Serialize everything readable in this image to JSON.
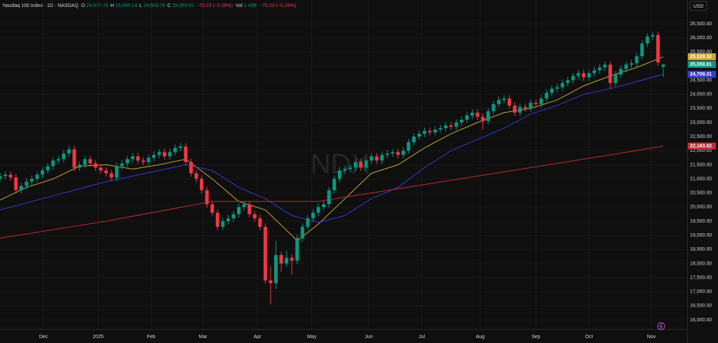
{
  "chart_data": {
    "type": "candlestick",
    "header": {
      "symbol": "Nasdaq 100 Index · 1D · NASDAQ",
      "fields": [
        {
          "key": "O",
          "value": "24,977.73"
        },
        {
          "key": "H",
          "value": "25,065.14"
        },
        {
          "key": "L",
          "value": "24,603.78"
        },
        {
          "key": "C",
          "value": "25,059.81"
        }
      ],
      "change": "−70.23 (−0.28%)",
      "vol_key": "Vol",
      "vol": "1.45B",
      "vol_change": "−70.23 (−0.28%)"
    },
    "currency": "USD",
    "watermark": "NDX",
    "up_color": "#089981",
    "down_color": "#f23645",
    "grid": true,
    "xlim": [
      0,
      259
    ],
    "ylim": [
      15677,
      27344
    ],
    "xticks": [
      {
        "value": 16.4,
        "label": "Dec"
      },
      {
        "value": 37,
        "label": "2025"
      },
      {
        "value": 57,
        "label": "Feb"
      },
      {
        "value": 76.5,
        "label": "Mar"
      },
      {
        "value": 97,
        "label": "Apr"
      },
      {
        "value": 117.5,
        "label": "May"
      },
      {
        "value": 139,
        "label": "Jun"
      },
      {
        "value": 159,
        "label": "Jul"
      },
      {
        "value": 181,
        "label": "Aug"
      },
      {
        "value": 202,
        "label": "Sep"
      },
      {
        "value": 222,
        "label": "Oct"
      },
      {
        "value": 245.5,
        "label": "Nov"
      }
    ],
    "yticks": [
      {
        "value": 16000,
        "label": "16,000.00"
      },
      {
        "value": 16500,
        "label": "16,500.00"
      },
      {
        "value": 17000,
        "label": "17,000.00"
      },
      {
        "value": 17500,
        "label": "17,500.00"
      },
      {
        "value": 18000,
        "label": "18,000.00"
      },
      {
        "value": 18500,
        "label": "18,500.00"
      },
      {
        "value": 19000,
        "label": "19,000.00"
      },
      {
        "value": 19500,
        "label": "19,500.00"
      },
      {
        "value": 20000,
        "label": "20,000.00"
      },
      {
        "value": 20500,
        "label": "20,500.00"
      },
      {
        "value": 21000,
        "label": "21,000.00"
      },
      {
        "value": 21500,
        "label": "21,500.00"
      },
      {
        "value": 22000,
        "label": "22,000.00"
      },
      {
        "value": 22500,
        "label": "22,500.00"
      },
      {
        "value": 23000,
        "label": "23,000.00"
      },
      {
        "value": 23500,
        "label": "23,500.00"
      },
      {
        "value": 24000,
        "label": "24,000.00"
      },
      {
        "value": 24500,
        "label": "24,500.00"
      },
      {
        "value": 25000,
        "label": "25,000.00"
      },
      {
        "value": 25500,
        "label": "25,500.00"
      },
      {
        "value": 26000,
        "label": "26,000.00"
      },
      {
        "value": 26500,
        "label": "26,500.00"
      }
    ],
    "candles": {
      "x": [
        0,
        2,
        4,
        6,
        8,
        10,
        12,
        14,
        16,
        18,
        20,
        22,
        24,
        26,
        28,
        30,
        32,
        34,
        36,
        38,
        40,
        42,
        44,
        46,
        48,
        50,
        52,
        54,
        56,
        58,
        60,
        62,
        64,
        66,
        68,
        70,
        72,
        74,
        76,
        78,
        80,
        82,
        84,
        86,
        88,
        90,
        92,
        94,
        96,
        98,
        100,
        102,
        104,
        106,
        108,
        110,
        112,
        114,
        116,
        118,
        120,
        122,
        124,
        126,
        128,
        130,
        132,
        134,
        136,
        138,
        140,
        142,
        144,
        146,
        148,
        150,
        152,
        154,
        156,
        158,
        160,
        162,
        164,
        166,
        168,
        170,
        172,
        174,
        176,
        178,
        180,
        182,
        184,
        186,
        188,
        190,
        192,
        194,
        196,
        198,
        200,
        202,
        204,
        206,
        208,
        210,
        212,
        214,
        216,
        218,
        220,
        222,
        224,
        226,
        228,
        230,
        232,
        234,
        236,
        238,
        240,
        242,
        244,
        246,
        248,
        250
      ],
      "open": [
        21000,
        21100,
        21150,
        21050,
        20600,
        20750,
        20900,
        21000,
        21150,
        21300,
        21450,
        21650,
        21700,
        21900,
        22050,
        21400,
        21500,
        21700,
        21550,
        21400,
        21300,
        21200,
        21050,
        21450,
        21550,
        21700,
        21800,
        21650,
        21600,
        21750,
        21850,
        21950,
        21800,
        21950,
        22100,
        22150,
        21600,
        21200,
        21000,
        20600,
        20100,
        19800,
        19300,
        19500,
        19600,
        19750,
        20000,
        20100,
        19750,
        19600,
        19300,
        17400,
        17300,
        18300,
        18000,
        18200,
        18100,
        18900,
        19300,
        19600,
        19800,
        20000,
        20100,
        20600,
        21000,
        21300,
        21350,
        21400,
        21600,
        21400,
        21650,
        21800,
        21650,
        21850,
        21900,
        21950,
        21850,
        22000,
        22300,
        22500,
        22600,
        22700,
        22650,
        22750,
        22800,
        22900,
        22850,
        23000,
        23100,
        23250,
        23350,
        23200,
        23050,
        23400,
        23650,
        23800,
        23850,
        23600,
        23350,
        23550,
        23500,
        23700,
        23650,
        23850,
        24050,
        24200,
        24250,
        24400,
        24500,
        24650,
        24750,
        24600,
        24750,
        24850,
        24950,
        25050,
        24400,
        24700,
        24900,
        25050,
        25100,
        25350,
        25800,
        26050,
        26100,
        24977.73
      ],
      "high": [
        21220,
        21270,
        21270,
        21170,
        20870,
        21020,
        21120,
        21270,
        21420,
        21570,
        21770,
        21820,
        22020,
        22170,
        22170,
        21620,
        21820,
        21820,
        21670,
        21520,
        21420,
        21320,
        21570,
        21670,
        21820,
        21920,
        21920,
        21770,
        21870,
        21970,
        22070,
        22070,
        22070,
        22220,
        22270,
        22270,
        21720,
        21320,
        21120,
        20720,
        20220,
        19920,
        19620,
        19720,
        19870,
        20120,
        20220,
        20220,
        19870,
        19720,
        19420,
        17900,
        18800,
        18420,
        18450,
        18320,
        19020,
        19420,
        19720,
        19920,
        20120,
        20220,
        20720,
        21120,
        21420,
        21470,
        21520,
        21720,
        21720,
        21770,
        21920,
        21920,
        21970,
        22020,
        22070,
        22070,
        22120,
        22420,
        22620,
        22720,
        22820,
        22820,
        22870,
        22920,
        23020,
        23020,
        23120,
        23220,
        23370,
        23470,
        23470,
        23320,
        23520,
        23770,
        23920,
        23970,
        23970,
        23720,
        23670,
        23670,
        23820,
        23820,
        23970,
        24170,
        24320,
        24370,
        24520,
        24620,
        24770,
        24870,
        24870,
        24870,
        24970,
        25070,
        25170,
        25170,
        24820,
        25020,
        25170,
        25220,
        25470,
        25920,
        26170,
        26220,
        26220,
        25065.14
      ],
      "low": [
        20880,
        20980,
        20930,
        20480,
        20480,
        20630,
        20780,
        20880,
        21030,
        21180,
        21330,
        21530,
        21580,
        21780,
        21280,
        21280,
        21380,
        21430,
        21280,
        21180,
        21080,
        20930,
        20930,
        21330,
        21430,
        21580,
        21530,
        21480,
        21480,
        21630,
        21730,
        21680,
        21680,
        21830,
        21980,
        21480,
        21080,
        20880,
        20480,
        19980,
        19680,
        19180,
        19180,
        19380,
        19480,
        19630,
        19880,
        19630,
        19480,
        19180,
        17280,
        16550,
        17100,
        17700,
        17880,
        17600,
        17980,
        18780,
        19180,
        19480,
        19680,
        19880,
        19980,
        20480,
        20880,
        21180,
        21230,
        21280,
        21280,
        21280,
        21530,
        21530,
        21530,
        21730,
        21780,
        21730,
        21730,
        21880,
        22180,
        22380,
        22480,
        22530,
        22530,
        22630,
        22680,
        22730,
        22730,
        22880,
        22980,
        23130,
        23080,
        22750,
        22930,
        23280,
        23530,
        23680,
        23480,
        23230,
        23230,
        23380,
        23380,
        23530,
        23530,
        23730,
        23930,
        24080,
        24130,
        24280,
        24380,
        24530,
        24480,
        24480,
        24630,
        24730,
        24830,
        24200,
        24280,
        24580,
        24780,
        24930,
        24980,
        25230,
        25680,
        25930,
        25010,
        24603.78
      ],
      "close": [
        21100,
        21150,
        21050,
        20600,
        20750,
        20900,
        21000,
        21150,
        21300,
        21450,
        21650,
        21700,
        21900,
        22050,
        21400,
        21500,
        21700,
        21550,
        21400,
        21300,
        21200,
        21050,
        21450,
        21550,
        21700,
        21800,
        21650,
        21600,
        21750,
        21850,
        21950,
        21800,
        21950,
        22100,
        22150,
        21600,
        21200,
        21000,
        20600,
        20100,
        19800,
        19300,
        19500,
        19600,
        19750,
        20000,
        20100,
        19750,
        19600,
        19300,
        17400,
        17300,
        18300,
        18000,
        18200,
        18100,
        18900,
        19300,
        19600,
        19800,
        20000,
        20100,
        20600,
        21000,
        21300,
        21350,
        21400,
        21600,
        21400,
        21650,
        21800,
        21650,
        21850,
        21900,
        21950,
        21850,
        22000,
        22300,
        22500,
        22600,
        22700,
        22650,
        22750,
        22800,
        22900,
        22850,
        23000,
        23100,
        23250,
        23350,
        23200,
        23050,
        23400,
        23650,
        23800,
        23850,
        23600,
        23350,
        23550,
        23500,
        23700,
        23650,
        23850,
        24050,
        24200,
        24250,
        24400,
        24500,
        24650,
        24750,
        24600,
        24750,
        24850,
        24950,
        25050,
        24400,
        24700,
        24900,
        25050,
        25100,
        25350,
        25800,
        26050,
        26100,
        25130.04,
        25059.81
      ],
      "last_label": "25,059.81"
    },
    "lines": [
      {
        "color": "#c8a92e",
        "x": [
          0,
          10,
          20,
          30,
          40,
          50,
          60,
          70,
          80,
          90,
          100,
          110,
          112,
          120,
          130,
          140,
          150,
          160,
          170,
          180,
          190,
          200,
          210,
          220,
          230,
          240,
          250
        ],
        "values": [
          20250,
          20700,
          21000,
          21450,
          21500,
          21350,
          21500,
          21700,
          21000,
          20200,
          19900,
          19000,
          18800,
          19400,
          20300,
          21200,
          21500,
          22100,
          22600,
          23000,
          23350,
          23500,
          23800,
          24300,
          24650,
          24950,
          25329.32
        ],
        "last_label": "25,329.32"
      },
      {
        "color": "#3a3ad6",
        "x": [
          0,
          20,
          40,
          60,
          70,
          80,
          90,
          100,
          110,
          120,
          130,
          140,
          150,
          160,
          170,
          180,
          190,
          200,
          210,
          220,
          230,
          240,
          250
        ],
        "values": [
          19900,
          20400,
          20900,
          21300,
          21500,
          21300,
          20700,
          20300,
          19700,
          19450,
          19700,
          20300,
          20700,
          21400,
          22000,
          22400,
          22800,
          23300,
          23600,
          24000,
          24200,
          24450,
          24709.31
        ],
        "last_label": "24,709.31"
      },
      {
        "color": "#c42b35",
        "x": [
          0,
          40,
          80,
          100,
          120,
          160,
          200,
          230,
          250
        ],
        "values": [
          18900,
          19500,
          20200,
          20200,
          20200,
          20800,
          21400,
          21850,
          22163.82
        ],
        "last_label": "22,163.82"
      }
    ]
  }
}
